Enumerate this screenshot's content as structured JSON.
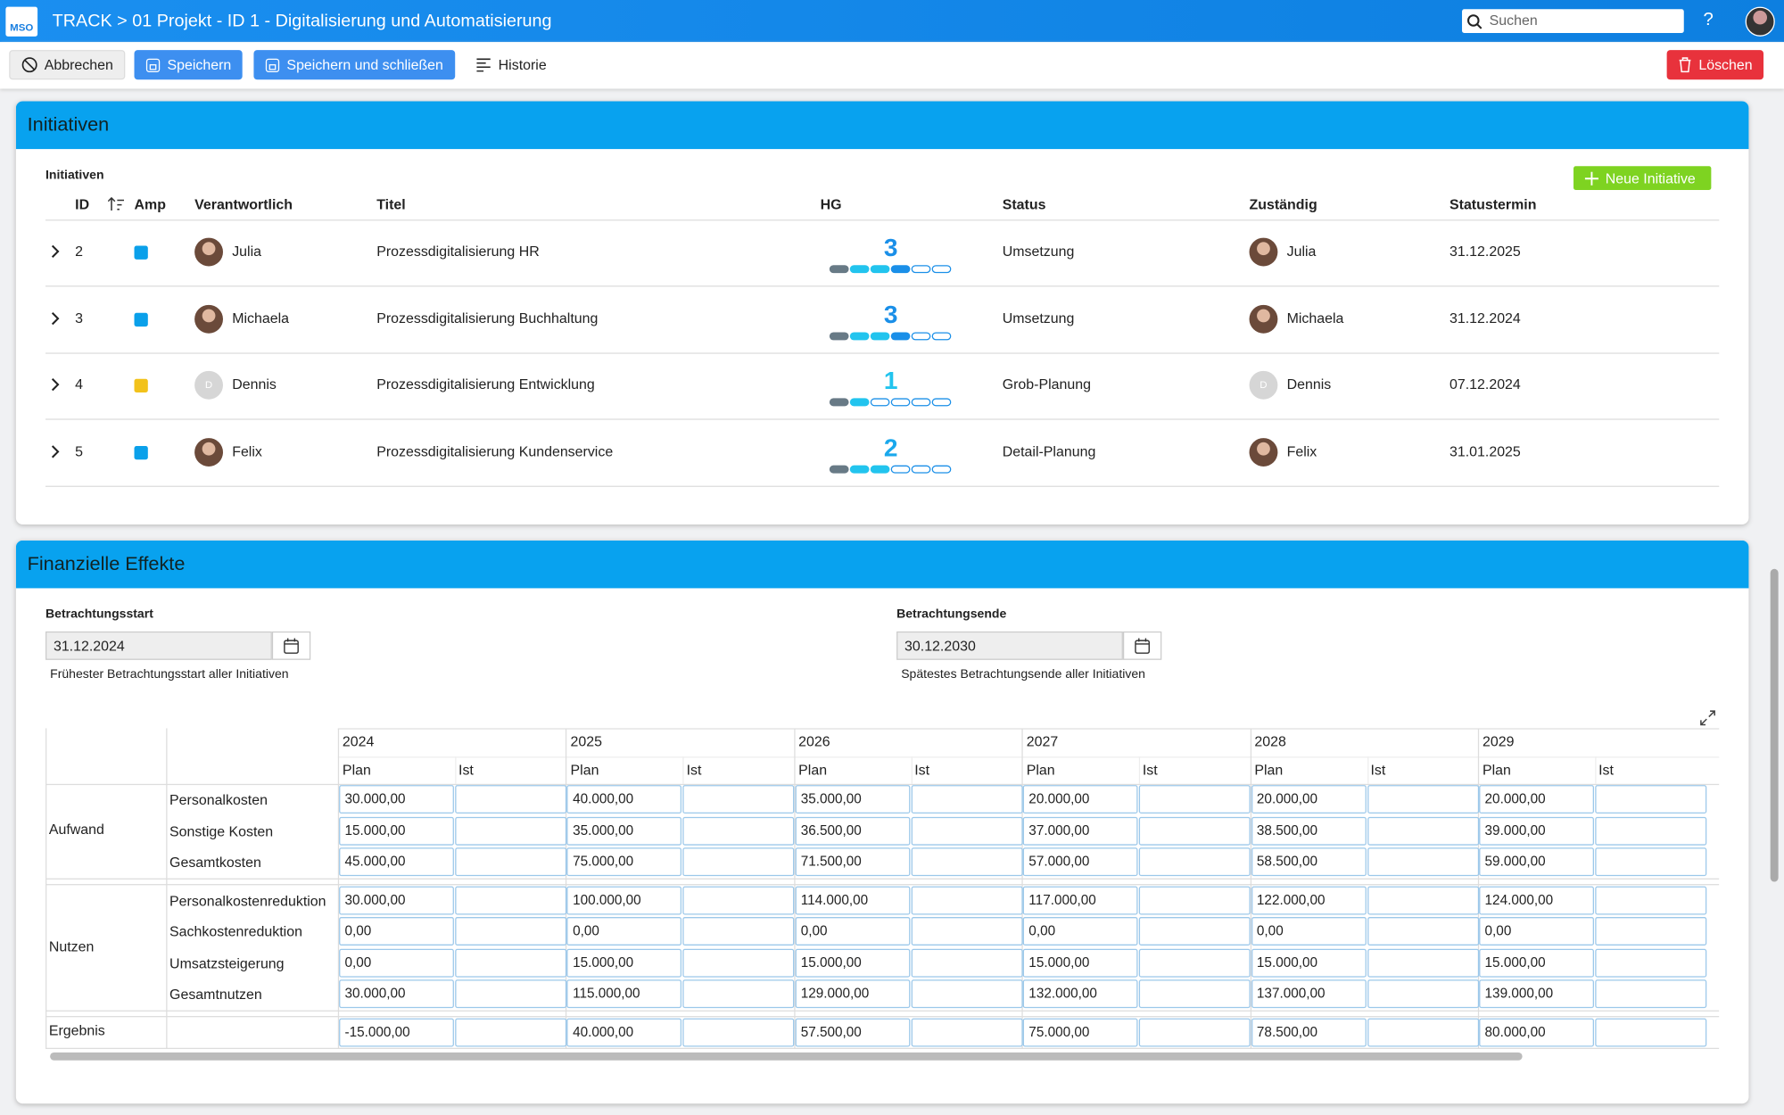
{
  "header": {
    "logo": "MSO",
    "breadcrumb": "TRACK > 01 Projekt - ID 1 - Digitalisierung und Automatisierung",
    "search": "Suchen",
    "help": "?"
  },
  "toolbar": {
    "cancel": "Abbrechen",
    "save": "Speichern",
    "save_close": "Speichern und schließen",
    "history": "Historie",
    "delete": "Löschen"
  },
  "initiatives": {
    "title": "Initiativen",
    "subtitle": "Initiativen",
    "new_button": "Neue Initiative",
    "columns": [
      "ID",
      "Amp",
      "Verantwortlich",
      "Titel",
      "HG",
      "Status",
      "Zuständig",
      "Statustermin"
    ],
    "rows": [
      {
        "id": 2,
        "amp": "#0aa0ea",
        "owner": "Julia",
        "title": "Prozessdigitalisierung HR",
        "hg": 3,
        "status": "Umsetzung",
        "responsible": "Julia",
        "date": "31.12.2025"
      },
      {
        "id": 3,
        "amp": "#0aa0ea",
        "owner": "Michaela",
        "title": "Prozessdigitalisierung Buchhaltung",
        "hg": 3,
        "status": "Umsetzung",
        "responsible": "Michaela",
        "date": "31.12.2024"
      },
      {
        "id": 4,
        "amp": "#f2c21b",
        "owner": "Dennis",
        "avatar_text": "D",
        "title": "Prozessdigitalisierung Entwicklung",
        "hg": 1,
        "status": "Grob-Planung",
        "responsible": "Dennis",
        "date": "07.12.2024"
      },
      {
        "id": 5,
        "amp": "#0aa0ea",
        "owner": "Felix",
        "title": "Prozessdigitalisierung Kundenservice",
        "hg": 2,
        "status": "Detail-Planung",
        "responsible": "Felix",
        "date": "31.01.2025"
      }
    ]
  },
  "finance": {
    "title": "Finanzielle Effekte",
    "start": {
      "label": "Betrachtungsstart",
      "value": "31.12.2024",
      "hint": "Frühester Betrachtungsstart aller Initiativen"
    },
    "end": {
      "label": "Betrachtungsende",
      "value": "30.12.2030",
      "hint": "Spätestes Betrachtungsende aller Initiativen"
    },
    "years": [
      "2024",
      "2025",
      "2026",
      "2027",
      "2028",
      "2029"
    ],
    "subheaders": [
      "Plan",
      "Ist"
    ],
    "groups": [
      {
        "name": "Aufwand",
        "rows": [
          {
            "label": "Personalkosten",
            "plan": [
              "30.000,00",
              "40.000,00",
              "35.000,00",
              "20.000,00",
              "20.000,00",
              "20.000,00"
            ]
          },
          {
            "label": "Sonstige Kosten",
            "plan": [
              "15.000,00",
              "35.000,00",
              "36.500,00",
              "37.000,00",
              "38.500,00",
              "39.000,00"
            ]
          },
          {
            "label": "Gesamtkosten",
            "plan": [
              "45.000,00",
              "75.000,00",
              "71.500,00",
              "57.000,00",
              "58.500,00",
              "59.000,00"
            ]
          }
        ]
      },
      {
        "name": "Nutzen",
        "rows": [
          {
            "label": "Personalkostenreduktion",
            "plan": [
              "30.000,00",
              "100.000,00",
              "114.000,00",
              "117.000,00",
              "122.000,00",
              "124.000,00"
            ]
          },
          {
            "label": "Sachkostenreduktion",
            "plan": [
              "0,00",
              "0,00",
              "0,00",
              "0,00",
              "0,00",
              "0,00"
            ]
          },
          {
            "label": "Umsatzsteigerung",
            "plan": [
              "0,00",
              "15.000,00",
              "15.000,00",
              "15.000,00",
              "15.000,00",
              "15.000,00"
            ]
          },
          {
            "label": "Gesamtnutzen",
            "plan": [
              "30.000,00",
              "115.000,00",
              "129.000,00",
              "132.000,00",
              "137.000,00",
              "139.000,00"
            ]
          }
        ]
      },
      {
        "name": "Ergebnis",
        "rows": [
          {
            "plan": [
              "-15.000,00",
              "40.000,00",
              "57.500,00",
              "75.000,00",
              "78.500,00",
              "80.000,00"
            ]
          }
        ]
      }
    ]
  }
}
